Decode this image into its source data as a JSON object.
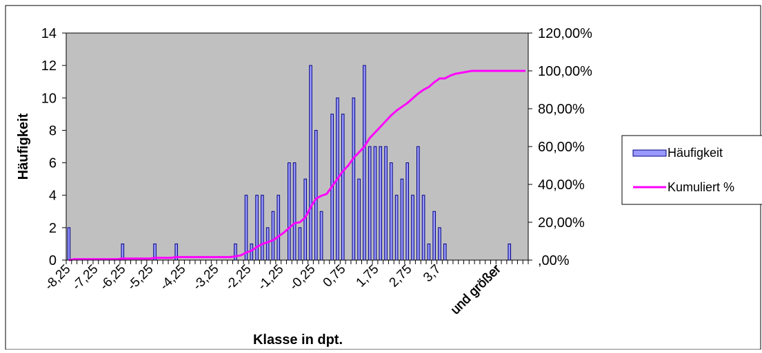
{
  "chart_data": {
    "type": "bar",
    "xlabel": "Klasse in dpt.",
    "ylabel": "Häufigkeit",
    "ylim": [
      0,
      14
    ],
    "yticks": [
      "0",
      "2",
      "4",
      "6",
      "8",
      "10",
      "12",
      "14"
    ],
    "y2lim": [
      0,
      1.2
    ],
    "y2ticks": [
      ",00%",
      "20,00%",
      "40,00%",
      "60,00%",
      "80,00%",
      "100,00%",
      "120,00%"
    ],
    "xtick_labels": [
      "-8,25",
      "-7,25",
      "-6,25",
      "-5,25",
      "-4,25",
      "-3,25",
      "-2,25",
      "-1,25",
      "-0,25",
      "0,75",
      "1,75",
      "2,75",
      "3,7",
      "und größer"
    ],
    "legend_position": "right",
    "colors": {
      "plot_bg": "#c0c0c0",
      "bar_fill": "#9999ff",
      "bar_stroke": "#000080",
      "line": "#ff00ff"
    },
    "series": [
      {
        "name": "Häufigkeit",
        "kind": "bar",
        "values": [
          2,
          0,
          0,
          0,
          0,
          0,
          0,
          0,
          0,
          0,
          1,
          0,
          0,
          0,
          0,
          0,
          1,
          0,
          0,
          0,
          1,
          0,
          0,
          0,
          0,
          0,
          0,
          0,
          0,
          0,
          0,
          1,
          0,
          4,
          1,
          4,
          4,
          2,
          3,
          4,
          0,
          6,
          6,
          2,
          5,
          12,
          8,
          3,
          0,
          9,
          10,
          9,
          0,
          10,
          5,
          12,
          7,
          7,
          7,
          7,
          6,
          4,
          5,
          6,
          4,
          7,
          4,
          1,
          3,
          2,
          1,
          0,
          0,
          0,
          0,
          0,
          0,
          0,
          0,
          0,
          0,
          0,
          1,
          0,
          0,
          0
        ]
      },
      {
        "name": "Kumuliert %",
        "kind": "line",
        "values": [
          0.0,
          0.005,
          0.005,
          0.005,
          0.005,
          0.005,
          0.005,
          0.005,
          0.005,
          0.005,
          0.008,
          0.008,
          0.008,
          0.008,
          0.008,
          0.008,
          0.012,
          0.012,
          0.012,
          0.012,
          0.016,
          0.016,
          0.016,
          0.016,
          0.016,
          0.016,
          0.016,
          0.016,
          0.016,
          0.016,
          0.016,
          0.02,
          0.025,
          0.04,
          0.05,
          0.07,
          0.085,
          0.095,
          0.105,
          0.125,
          0.145,
          0.17,
          0.195,
          0.2,
          0.225,
          0.28,
          0.325,
          0.34,
          0.35,
          0.39,
          0.43,
          0.47,
          0.5,
          0.54,
          0.57,
          0.6,
          0.645,
          0.675,
          0.705,
          0.735,
          0.765,
          0.79,
          0.81,
          0.83,
          0.855,
          0.88,
          0.9,
          0.915,
          0.94,
          0.96,
          0.96,
          0.975,
          0.985,
          0.99,
          0.995,
          1.0,
          1.0,
          1.0,
          1.0,
          1.0,
          1.0,
          1.0,
          1.0,
          1.0,
          1.0,
          1.0
        ]
      }
    ]
  }
}
